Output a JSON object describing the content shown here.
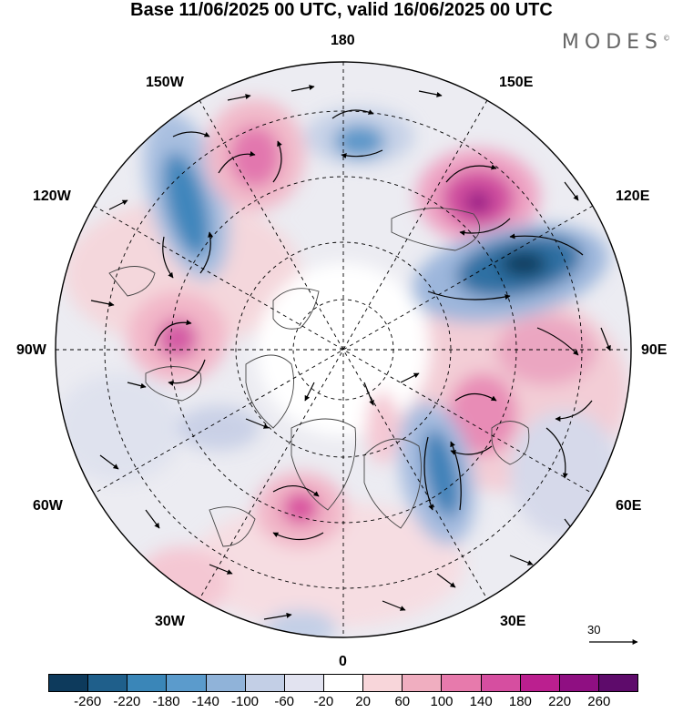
{
  "title": "Base 11/06/2025 00 UTC, valid 16/06/2025 00 UTC",
  "brand": "MODES",
  "brand_mark": "©",
  "longitude_labels": {
    "n180": "180",
    "w150": "150W",
    "e150": "150E",
    "w120": "120W",
    "e120": "120E",
    "w90": "90W",
    "e90": "90E",
    "w60": "60W",
    "e60": "60E",
    "w30": "30W",
    "e30": "30E",
    "s0": "0"
  },
  "reference_vector": "30",
  "colorbar": {
    "ticks": [
      "-260",
      "-220",
      "-180",
      "-140",
      "-100",
      "-60",
      "-20",
      "20",
      "60",
      "100",
      "140",
      "180",
      "220",
      "260"
    ],
    "colors": [
      "#0d3a5c",
      "#1f5f8b",
      "#3a86b8",
      "#5b9bcc",
      "#90b3d9",
      "#c3cfe6",
      "#e2e3f0",
      "#ffffff",
      "#f8d6da",
      "#f0aec0",
      "#e77aac",
      "#d64ea0",
      "#bb1f8f",
      "#8f0f82",
      "#5e0b6b"
    ]
  },
  "anomalies": [
    {
      "name": "blue-pacific-west",
      "value": -180
    },
    {
      "name": "pink-alaska-gulf",
      "value": 140
    },
    {
      "name": "blue-bering",
      "value": -140
    },
    {
      "name": "magenta-east-siberia",
      "value": 220
    },
    {
      "name": "darkblue-siberia",
      "value": -260
    },
    {
      "name": "pink-canada-west",
      "value": 140
    },
    {
      "name": "pink-central-asia",
      "value": 100
    },
    {
      "name": "pink-russia",
      "value": 140
    },
    {
      "name": "blue-scandinavia",
      "value": -180
    },
    {
      "name": "pink-greenland-south",
      "value": 140
    },
    {
      "name": "pink-atlantic",
      "value": 60
    },
    {
      "name": "blue-europe-south",
      "value": -60
    }
  ]
}
